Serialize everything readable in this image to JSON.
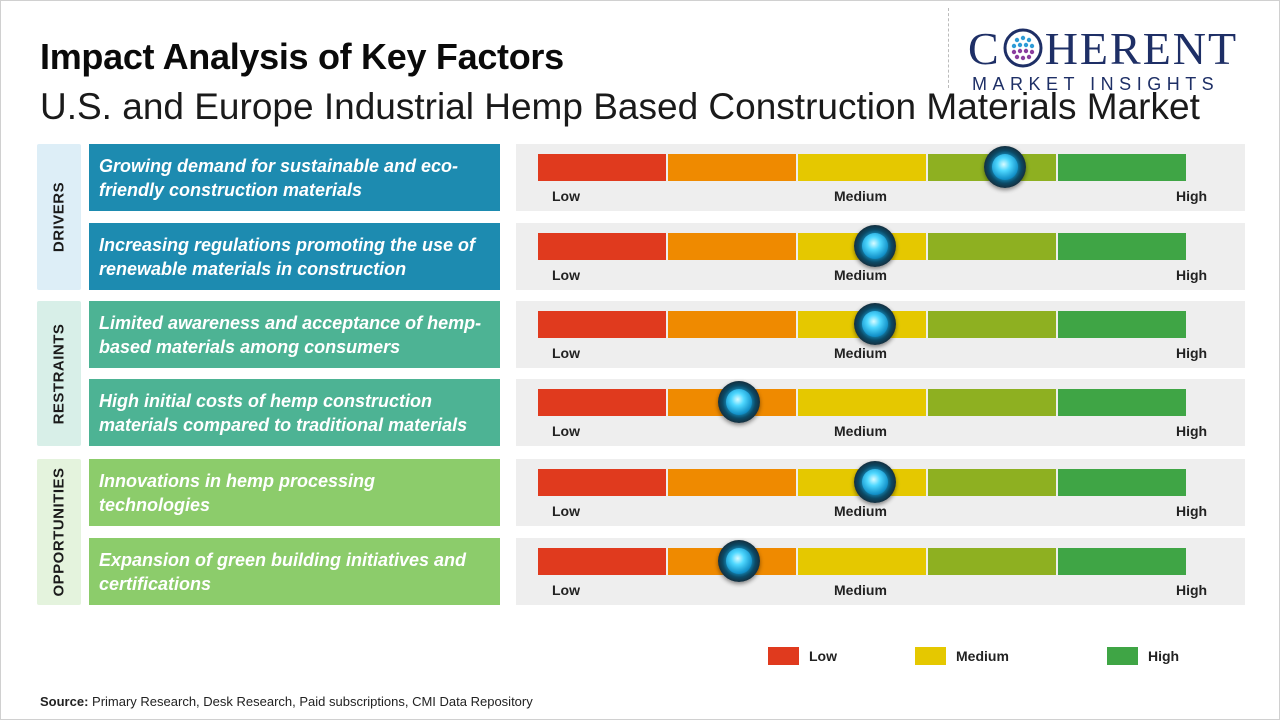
{
  "header": {
    "title": "Impact Analysis of Key Factors",
    "subtitle": "U.S. and Europe Industrial Hemp Based Construction Materials Market"
  },
  "logo": {
    "main_left": "C",
    "main_right": "HERENT",
    "sub": "MARKET INSIGHTS"
  },
  "colors": {
    "low": "#e03a1e",
    "low_medium": "#ef8a00",
    "medium": "#e5c800",
    "medium_high": "#8eb021",
    "high": "#3fa545",
    "drivers_band": "#ddeef7",
    "drivers_box": "#1d8bb0",
    "restraints_band": "#d8efe8",
    "restraints_box": "#4db394",
    "opportunities_band": "#e4f3dd",
    "opportunities_box": "#8ccc6b"
  },
  "chart_data": {
    "type": "gauge-table",
    "title": "Impact Analysis of Key Factors",
    "scale_labels": [
      "Low",
      "Medium",
      "High"
    ],
    "scale_segments": 5,
    "groups": [
      {
        "name": "DRIVERS",
        "key": "drivers"
      },
      {
        "name": "RESTRAINTS",
        "key": "restraints"
      },
      {
        "name": "OPPORTUNITIES",
        "key": "opportunities"
      }
    ],
    "factors": [
      {
        "group": "drivers",
        "label": "Growing demand for sustainable and eco-friendly construction materials",
        "impact": 0.72
      },
      {
        "group": "drivers",
        "label": "Increasing regulations promoting the use of renewable materials in construction",
        "impact": 0.52
      },
      {
        "group": "restraints",
        "label": "Limited awareness and acceptance of hemp-based materials among consumers",
        "impact": 0.52
      },
      {
        "group": "restraints",
        "label": "High initial costs of hemp construction materials compared to traditional materials",
        "impact": 0.31
      },
      {
        "group": "opportunities",
        "label": "Innovations in hemp processing technologies",
        "impact": 0.52
      },
      {
        "group": "opportunities",
        "label": "Expansion of green building initiatives and certifications",
        "impact": 0.31
      }
    ],
    "legend": [
      {
        "label": "Low",
        "color": "#e03a1e"
      },
      {
        "label": "Medium",
        "color": "#e5c800"
      },
      {
        "label": "High",
        "color": "#3fa545"
      }
    ]
  },
  "source": {
    "prefix": "Source:",
    "text": "Primary Research, Desk Research, Paid subscriptions, CMI Data Repository"
  }
}
